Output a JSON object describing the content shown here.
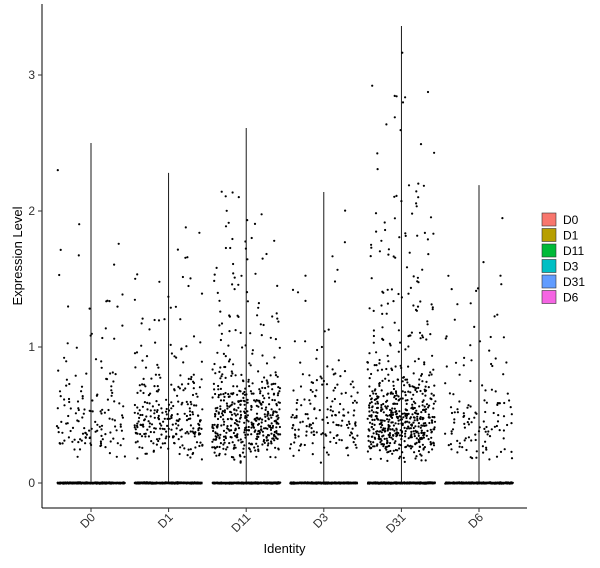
{
  "chart_data": {
    "type": "violin-jitter",
    "title": "",
    "xlabel": "Identity",
    "ylabel": "Expression Level",
    "categories": [
      "D0",
      "D1",
      "D11",
      "D3",
      "D31",
      "D6"
    ],
    "yticks": [
      0,
      1,
      2,
      3
    ],
    "ylim": [
      -0.18,
      3.45
    ],
    "grid": false,
    "legend_position": "right",
    "legend": [
      {
        "label": "D0",
        "color": "#F8766D"
      },
      {
        "label": "D1",
        "color": "#B79F00"
      },
      {
        "label": "D11",
        "color": "#00BA38"
      },
      {
        "label": "D3",
        "color": "#00BFC4"
      },
      {
        "label": "D31",
        "color": "#619CFF"
      },
      {
        "label": "D6",
        "color": "#F564E3"
      }
    ],
    "series": [
      {
        "category": "D0",
        "max": 2.5,
        "nonzero_points": 150
      },
      {
        "category": "D1",
        "max": 2.28,
        "nonzero_points": 280
      },
      {
        "category": "D11",
        "max": 2.61,
        "nonzero_points": 500
      },
      {
        "category": "D3",
        "max": 2.14,
        "nonzero_points": 170
      },
      {
        "category": "D31",
        "max": 3.36,
        "nonzero_points": 620
      },
      {
        "category": "D6",
        "max": 2.19,
        "nonzero_points": 130
      }
    ]
  }
}
